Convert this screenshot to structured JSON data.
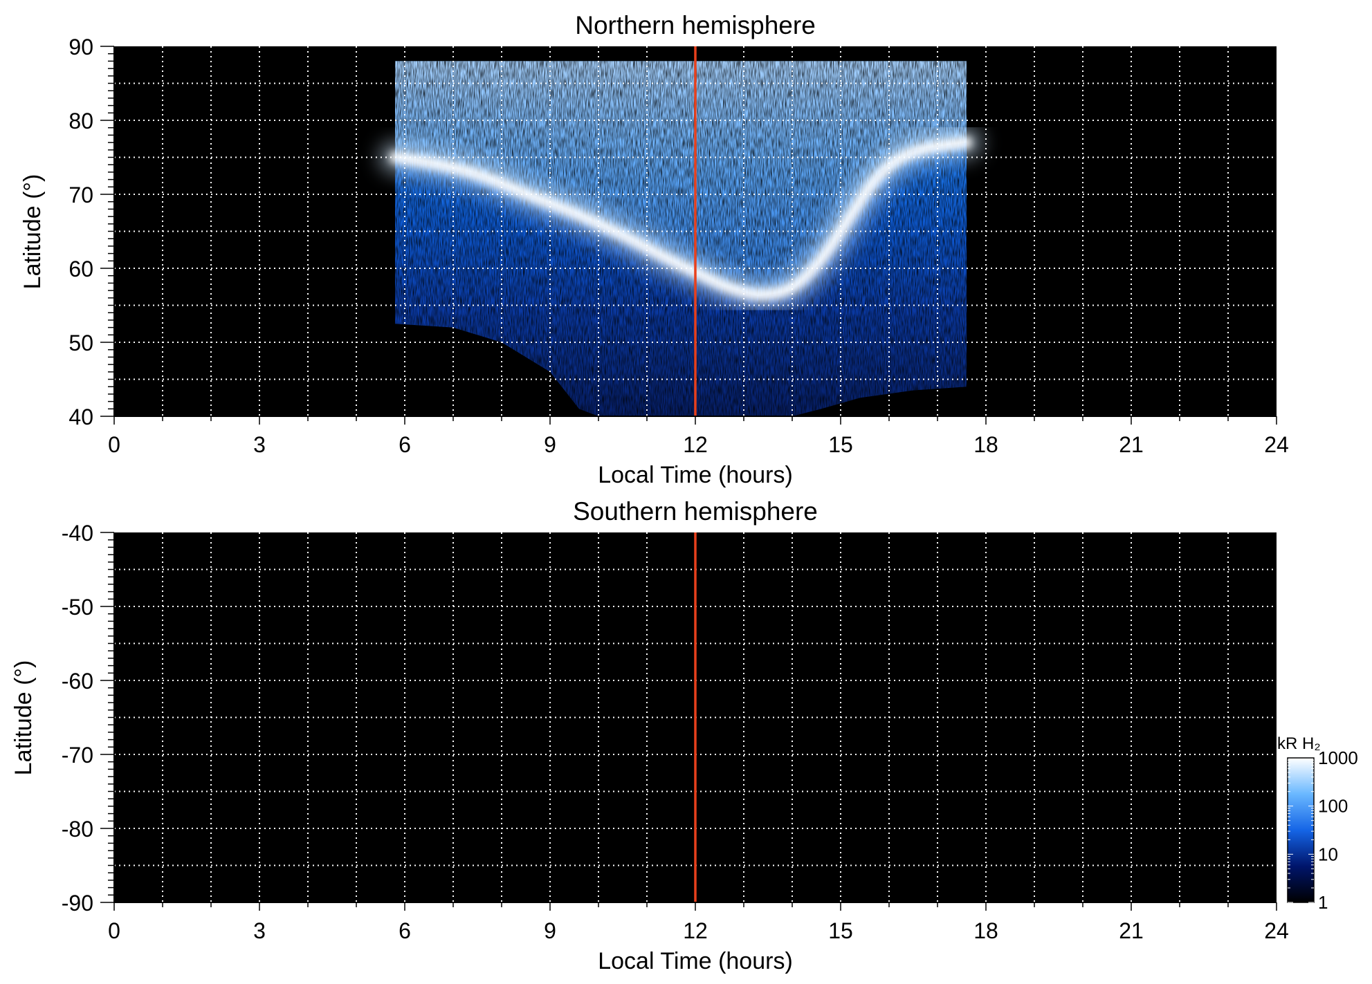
{
  "chart_data": [
    {
      "type": "heatmap",
      "title": "Northern hemisphere",
      "xlabel": "Local Time (hours)",
      "ylabel": "Latitude (°)",
      "xlim": [
        0,
        24
      ],
      "ylim": [
        40,
        90
      ],
      "xticks": [
        0,
        3,
        6,
        9,
        12,
        15,
        18,
        21,
        24
      ],
      "yticks": [
        40,
        50,
        60,
        70,
        80,
        90
      ],
      "grid": true,
      "marker_line_x": 12,
      "observed_region": {
        "x_range": [
          5.8,
          17.6
        ],
        "lower_boundary": [
          [
            5.8,
            52.5
          ],
          [
            7,
            52
          ],
          [
            8,
            50
          ],
          [
            9,
            46
          ],
          [
            9.6,
            41
          ],
          [
            10,
            40
          ],
          [
            14,
            40
          ],
          [
            14.6,
            41
          ],
          [
            15.4,
            42.5
          ],
          [
            16.5,
            43.5
          ],
          [
            17.6,
            44
          ]
        ],
        "upper_boundary": [
          [
            5.8,
            88
          ],
          [
            17.6,
            88
          ]
        ]
      },
      "main_oval": [
        [
          5.8,
          75
        ],
        [
          6.5,
          74.3
        ],
        [
          7.5,
          72.8
        ],
        [
          8.5,
          70
        ],
        [
          9.5,
          67.5
        ],
        [
          10.5,
          64.5
        ],
        [
          11.5,
          61
        ],
        [
          12,
          59.5
        ],
        [
          12.6,
          57.5
        ],
        [
          13.3,
          56.2
        ],
        [
          14,
          57
        ],
        [
          14.6,
          61
        ],
        [
          15.2,
          67
        ],
        [
          15.8,
          73
        ],
        [
          16.5,
          76
        ],
        [
          17.6,
          77
        ]
      ],
      "colorbar": {
        "label": "kR H₂",
        "scale": "log",
        "range": [
          1,
          1000
        ],
        "ticks": [
          "1",
          "10",
          "100",
          "1000"
        ],
        "colors": [
          "#000000",
          "#00156b",
          "#1565e6",
          "#6ab8ff",
          "#ffffff"
        ]
      }
    },
    {
      "type": "heatmap",
      "title": "Southern hemisphere",
      "xlabel": "Local Time (hours)",
      "ylabel": "Latitude (°)",
      "xlim": [
        0,
        24
      ],
      "ylim": [
        -90,
        -40
      ],
      "xticks": [
        0,
        3,
        6,
        9,
        12,
        15,
        18,
        21,
        24
      ],
      "yticks": [
        -40,
        -50,
        -60,
        -70,
        -80,
        -90
      ],
      "grid": true,
      "marker_line_x": 12,
      "observed_region": null
    }
  ]
}
